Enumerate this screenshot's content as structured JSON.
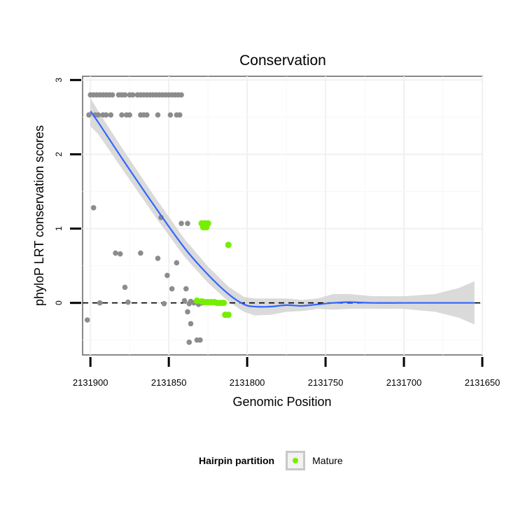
{
  "chart_data": {
    "type": "scatter",
    "title": "Conservation",
    "xlabel": "Genomic Position",
    "ylabel": "phyloP LRT conservation scores",
    "xlim": [
      2131905,
      2131650
    ],
    "ylim": [
      -0.7,
      3.05
    ],
    "x_reversed": true,
    "x_ticks": [
      2131900,
      2131850,
      2131800,
      2131750,
      2131700,
      2131650
    ],
    "x_tick_labels": [
      "2131900",
      "2131850",
      "2131800",
      "2131750",
      "2131700",
      "2131650"
    ],
    "y_ticks": [
      0,
      1,
      2,
      3
    ],
    "y_tick_labels": [
      "0",
      "1",
      "2",
      "3"
    ],
    "reference_line": {
      "y": 0,
      "style": "dashed",
      "color": "#000000"
    },
    "grid": true,
    "series": [
      {
        "color": "#8c8c8c",
        "points": [
          [
            2131900,
            2.8
          ],
          [
            2131898,
            2.8
          ],
          [
            2131896,
            2.8
          ],
          [
            2131894,
            2.8
          ],
          [
            2131892,
            2.8
          ],
          [
            2131890,
            2.8
          ],
          [
            2131888,
            2.8
          ],
          [
            2131886,
            2.8
          ],
          [
            2131882,
            2.8
          ],
          [
            2131880,
            2.8
          ],
          [
            2131878,
            2.8
          ],
          [
            2131875,
            2.8
          ],
          [
            2131873,
            2.8
          ],
          [
            2131870,
            2.8
          ],
          [
            2131868,
            2.8
          ],
          [
            2131866,
            2.8
          ],
          [
            2131864,
            2.8
          ],
          [
            2131862,
            2.8
          ],
          [
            2131860,
            2.8
          ],
          [
            2131858,
            2.8
          ],
          [
            2131856,
            2.8
          ],
          [
            2131854,
            2.8
          ],
          [
            2131852,
            2.8
          ],
          [
            2131850,
            2.8
          ],
          [
            2131848,
            2.8
          ],
          [
            2131846,
            2.8
          ],
          [
            2131844,
            2.8
          ],
          [
            2131842,
            2.8
          ],
          [
            2131901,
            2.53
          ],
          [
            2131897,
            2.53
          ],
          [
            2131895,
            2.53
          ],
          [
            2131892,
            2.53
          ],
          [
            2131890,
            2.53
          ],
          [
            2131887,
            2.53
          ],
          [
            2131880,
            2.53
          ],
          [
            2131877,
            2.53
          ],
          [
            2131875,
            2.53
          ],
          [
            2131868,
            2.53
          ],
          [
            2131866,
            2.53
          ],
          [
            2131864,
            2.53
          ],
          [
            2131857,
            2.53
          ],
          [
            2131849,
            2.53
          ],
          [
            2131845,
            2.53
          ],
          [
            2131843,
            2.53
          ],
          [
            2131898,
            1.28
          ],
          [
            2131855,
            1.15
          ],
          [
            2131842,
            1.07
          ],
          [
            2131838,
            1.07
          ],
          [
            2131884,
            0.67
          ],
          [
            2131881,
            0.66
          ],
          [
            2131868,
            0.67
          ],
          [
            2131857,
            0.6
          ],
          [
            2131845,
            0.54
          ],
          [
            2131851,
            0.37
          ],
          [
            2131878,
            0.21
          ],
          [
            2131848,
            0.19
          ],
          [
            2131839,
            0.19
          ],
          [
            2131894,
            0.0
          ],
          [
            2131876,
            0.01
          ],
          [
            2131853,
            -0.01
          ],
          [
            2131840,
            0.03
          ],
          [
            2131836,
            0.02
          ],
          [
            2131837,
            -0.01
          ],
          [
            2131834,
            0.0
          ],
          [
            2131831,
            -0.02
          ],
          [
            2131829,
            0.0
          ],
          [
            2131902,
            -0.23
          ],
          [
            2131838,
            -0.12
          ],
          [
            2131836,
            -0.28
          ],
          [
            2131832,
            -0.5
          ],
          [
            2131830,
            -0.5
          ],
          [
            2131837,
            -0.53
          ]
        ]
      },
      {
        "color": "#76ee00",
        "points": [
          [
            2131829,
            1.07
          ],
          [
            2131827,
            1.07
          ],
          [
            2131825,
            1.07
          ],
          [
            2131828,
            1.02
          ],
          [
            2131826,
            1.02
          ],
          [
            2131812,
            0.78
          ],
          [
            2131832,
            0.03
          ],
          [
            2131829,
            0.02
          ],
          [
            2131827,
            0.01
          ],
          [
            2131825,
            0.01
          ],
          [
            2131823,
            0.01
          ],
          [
            2131821,
            0.01
          ],
          [
            2131819,
            0.0
          ],
          [
            2131817,
            0.0
          ],
          [
            2131815,
            0.0
          ],
          [
            2131814,
            -0.16
          ],
          [
            2131812,
            -0.16
          ]
        ]
      }
    ],
    "smooth": {
      "color": "#3366ff",
      "fill": "#d3d3d3",
      "points": [
        {
          "x": 2131900,
          "y": 2.58,
          "lo": 2.38,
          "hi": 2.76
        },
        {
          "x": 2131895,
          "y": 2.43,
          "lo": 2.27,
          "hi": 2.58
        },
        {
          "x": 2131880,
          "y": 1.95,
          "lo": 1.81,
          "hi": 2.09
        },
        {
          "x": 2131860,
          "y": 1.33,
          "lo": 1.2,
          "hi": 1.46
        },
        {
          "x": 2131840,
          "y": 0.74,
          "lo": 0.62,
          "hi": 0.86
        },
        {
          "x": 2131825,
          "y": 0.38,
          "lo": 0.27,
          "hi": 0.49
        },
        {
          "x": 2131812,
          "y": 0.12,
          "lo": 0.02,
          "hi": 0.22
        },
        {
          "x": 2131802,
          "y": -0.02,
          "lo": -0.12,
          "hi": 0.08
        },
        {
          "x": 2131795,
          "y": -0.05,
          "lo": -0.17,
          "hi": 0.06
        },
        {
          "x": 2131785,
          "y": -0.05,
          "lo": -0.16,
          "hi": 0.06
        },
        {
          "x": 2131775,
          "y": -0.03,
          "lo": -0.12,
          "hi": 0.06
        },
        {
          "x": 2131765,
          "y": -0.04,
          "lo": -0.11,
          "hi": 0.04
        },
        {
          "x": 2131755,
          "y": -0.02,
          "lo": -0.08,
          "hi": 0.06
        },
        {
          "x": 2131745,
          "y": 0.0,
          "lo": -0.09,
          "hi": 0.12
        },
        {
          "x": 2131735,
          "y": 0.01,
          "lo": -0.08,
          "hi": 0.12
        },
        {
          "x": 2131720,
          "y": 0.0,
          "lo": -0.08,
          "hi": 0.09
        },
        {
          "x": 2131700,
          "y": 0.0,
          "lo": -0.08,
          "hi": 0.09
        },
        {
          "x": 2131680,
          "y": 0.0,
          "lo": -0.12,
          "hi": 0.12
        },
        {
          "x": 2131665,
          "y": 0.0,
          "lo": -0.2,
          "hi": 0.2
        },
        {
          "x": 2131655,
          "y": 0.0,
          "lo": -0.29,
          "hi": 0.29
        }
      ]
    }
  },
  "legend": {
    "title": "Hairpin partition",
    "items": [
      {
        "label": "Mature",
        "color": "#76ee00"
      }
    ]
  }
}
